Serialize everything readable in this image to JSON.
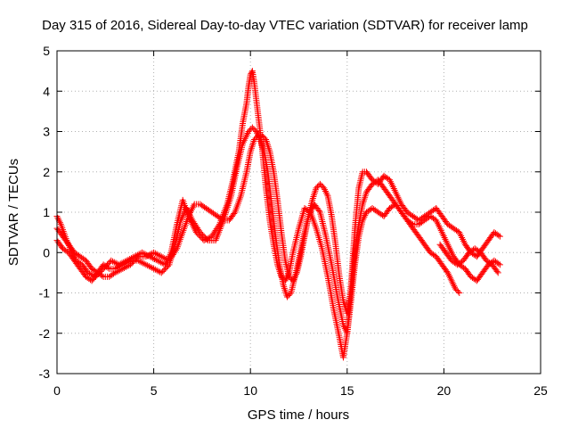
{
  "chart_data": {
    "type": "scatter",
    "title": "Day 315 of 2016, Sidereal Day-to-day VTEC variation (SDTVAR) for receiver lamp",
    "xlabel": "GPS time / hours",
    "ylabel": "SDTVAR / TECUs",
    "xlim": [
      0,
      25
    ],
    "ylim": [
      -3,
      5
    ],
    "xticks": [
      0,
      5,
      10,
      15,
      20,
      25
    ],
    "yticks": [
      -3,
      -2,
      -1,
      0,
      1,
      2,
      3,
      4,
      5
    ],
    "grid": true,
    "legend": "none",
    "marker": "+",
    "color": "#ff0000",
    "series": [
      {
        "x": [
          0.0,
          0.2,
          0.5,
          0.8,
          1.0,
          1.3,
          1.6,
          2.0,
          2.4,
          2.8,
          3.2,
          3.6,
          4.0,
          4.4,
          4.8,
          5.2,
          5.6,
          5.9,
          6.2,
          6.5,
          6.8,
          7.2,
          7.6,
          8.0,
          8.4,
          8.8,
          9.1,
          9.4,
          9.6,
          9.8,
          9.9,
          10.0,
          10.1,
          10.2,
          10.4,
          10.6,
          10.8,
          11.0,
          11.2,
          11.4,
          11.6,
          11.8,
          12.0,
          12.2,
          12.5,
          12.8,
          13.1,
          13.4,
          13.7,
          14.0,
          14.3,
          14.6,
          14.8,
          15.0,
          15.2,
          15.4,
          15.6,
          15.8,
          16.0,
          16.3,
          16.6,
          16.9,
          17.2,
          17.5,
          17.8,
          18.1,
          18.4,
          18.7,
          19.0,
          19.3,
          19.6,
          19.9,
          20.2,
          20.5,
          20.8,
          21.1,
          21.4,
          21.7,
          22.0,
          22.3,
          22.6,
          22.9
        ],
        "y": [
          0.9,
          0.7,
          0.3,
          0.0,
          -0.2,
          -0.3,
          -0.5,
          -0.6,
          -0.4,
          -0.2,
          -0.3,
          -0.2,
          -0.1,
          0.0,
          -0.1,
          -0.2,
          -0.3,
          0.0,
          0.7,
          1.3,
          0.9,
          0.5,
          0.3,
          0.4,
          0.7,
          1.2,
          1.8,
          2.5,
          3.2,
          3.7,
          4.1,
          4.4,
          4.5,
          4.2,
          3.4,
          2.6,
          1.6,
          0.8,
          0.2,
          -0.3,
          -0.6,
          -0.7,
          -0.5,
          0.0,
          0.6,
          1.1,
          1.0,
          0.6,
          0.1,
          -0.6,
          -1.4,
          -2.1,
          -2.6,
          -2.0,
          -0.8,
          0.6,
          1.6,
          2.0,
          2.0,
          1.8,
          1.7,
          1.9,
          1.8,
          1.5,
          1.2,
          1.0,
          0.9,
          0.8,
          0.9,
          1.0,
          1.1,
          0.9,
          0.7,
          0.6,
          0.5,
          0.2,
          0.0,
          -0.1,
          0.1,
          0.3,
          0.5,
          0.4
        ]
      },
      {
        "x": [
          0.0,
          0.3,
          0.6,
          0.9,
          1.2,
          1.5,
          1.8,
          2.1,
          2.4,
          2.7,
          3.0,
          3.4,
          3.8,
          4.2,
          4.6,
          5.0,
          5.4,
          5.8,
          6.1,
          6.4,
          6.7,
          7.0,
          7.4,
          7.8,
          8.2,
          8.6,
          9.0,
          9.3,
          9.6,
          9.9,
          10.1,
          10.3,
          10.5,
          10.7,
          10.9,
          11.1,
          11.3,
          11.5,
          11.7,
          11.9,
          12.1,
          12.4,
          12.7,
          13.0,
          13.3,
          13.6,
          13.9,
          14.2,
          14.5,
          14.8,
          15.0,
          15.2,
          15.4,
          15.6,
          15.8,
          16.0,
          16.3,
          16.6,
          16.9,
          17.2,
          17.5,
          17.8,
          18.1,
          18.4,
          18.7,
          19.0,
          19.3,
          19.6,
          19.9,
          20.2,
          20.5,
          20.8,
          21.1,
          21.4,
          21.7,
          22.0,
          22.3,
          22.6,
          22.9
        ],
        "y": [
          0.3,
          0.1,
          0.0,
          -0.2,
          -0.4,
          -0.6,
          -0.7,
          -0.5,
          -0.3,
          -0.4,
          -0.4,
          -0.3,
          -0.2,
          -0.2,
          -0.3,
          -0.4,
          -0.5,
          -0.3,
          0.2,
          0.8,
          1.1,
          0.8,
          0.5,
          0.3,
          0.3,
          0.8,
          1.4,
          2.1,
          2.7,
          3.0,
          3.1,
          3.0,
          2.8,
          2.5,
          2.0,
          1.2,
          0.4,
          -0.3,
          -0.8,
          -1.1,
          -1.0,
          -0.4,
          0.3,
          0.9,
          1.2,
          1.0,
          0.4,
          -0.3,
          -1.1,
          -1.8,
          -2.0,
          -1.2,
          -0.3,
          0.4,
          0.8,
          1.0,
          1.1,
          1.0,
          0.9,
          1.1,
          1.2,
          1.0,
          0.8,
          0.7,
          0.7,
          0.8,
          0.9,
          0.8,
          0.5,
          0.2,
          -0.1,
          -0.3,
          -0.4,
          -0.6,
          -0.7,
          -0.5,
          -0.3,
          -0.2,
          -0.3
        ]
      },
      {
        "x": [
          0.0,
          0.3,
          0.6,
          0.9,
          1.2,
          1.5,
          1.8,
          2.1,
          2.4,
          2.7,
          3.0,
          3.4,
          3.8,
          4.2,
          4.6,
          5.0,
          5.4,
          5.8,
          6.2,
          6.5,
          6.8,
          7.1,
          7.4,
          7.7,
          8.0,
          8.3,
          8.6,
          8.9,
          9.2,
          9.5,
          9.8,
          10.0,
          10.2,
          10.4,
          10.6,
          10.8,
          11.0,
          11.2,
          11.4,
          11.6,
          11.8,
          12.0,
          12.2,
          12.4,
          12.6,
          12.8,
          13.0,
          13.2,
          13.4,
          13.6,
          13.8,
          14.0,
          14.2,
          14.4,
          14.6,
          14.8,
          15.0,
          15.2,
          15.4,
          15.6,
          15.8,
          16.0,
          16.3,
          16.6,
          16.9,
          17.2,
          17.5,
          17.8,
          18.1,
          18.4,
          18.7,
          19.0,
          19.3,
          19.6,
          19.9,
          20.2,
          20.4,
          20.6,
          20.8
        ],
        "y": [
          0.6,
          0.4,
          0.2,
          0.0,
          -0.1,
          -0.2,
          -0.4,
          -0.5,
          -0.6,
          -0.6,
          -0.5,
          -0.4,
          -0.3,
          -0.1,
          -0.1,
          0.0,
          -0.1,
          -0.2,
          0.1,
          0.5,
          0.9,
          1.2,
          1.2,
          1.1,
          1.0,
          0.9,
          0.8,
          0.8,
          1.0,
          1.4,
          2.0,
          2.5,
          2.8,
          2.9,
          2.9,
          2.8,
          2.5,
          2.0,
          1.3,
          0.5,
          -0.2,
          -0.6,
          -0.7,
          -0.5,
          -0.1,
          0.4,
          0.9,
          1.3,
          1.6,
          1.7,
          1.6,
          1.4,
          0.9,
          0.2,
          -0.6,
          -1.2,
          -1.5,
          -0.9,
          0.0,
          0.7,
          1.2,
          1.5,
          1.7,
          1.8,
          1.6,
          1.4,
          1.2,
          1.0,
          0.8,
          0.6,
          0.4,
          0.2,
          0.0,
          -0.1,
          -0.3,
          -0.5,
          -0.7,
          -0.9,
          -1.0
        ]
      },
      {
        "x": [
          19.8,
          20.1,
          20.4,
          20.7,
          21.0,
          21.3,
          21.6,
          21.9,
          22.2,
          22.5,
          22.8
        ],
        "y": [
          0.2,
          0.0,
          -0.2,
          -0.3,
          -0.2,
          0.0,
          0.1,
          0.0,
          -0.2,
          -0.3,
          -0.5
        ]
      }
    ]
  }
}
